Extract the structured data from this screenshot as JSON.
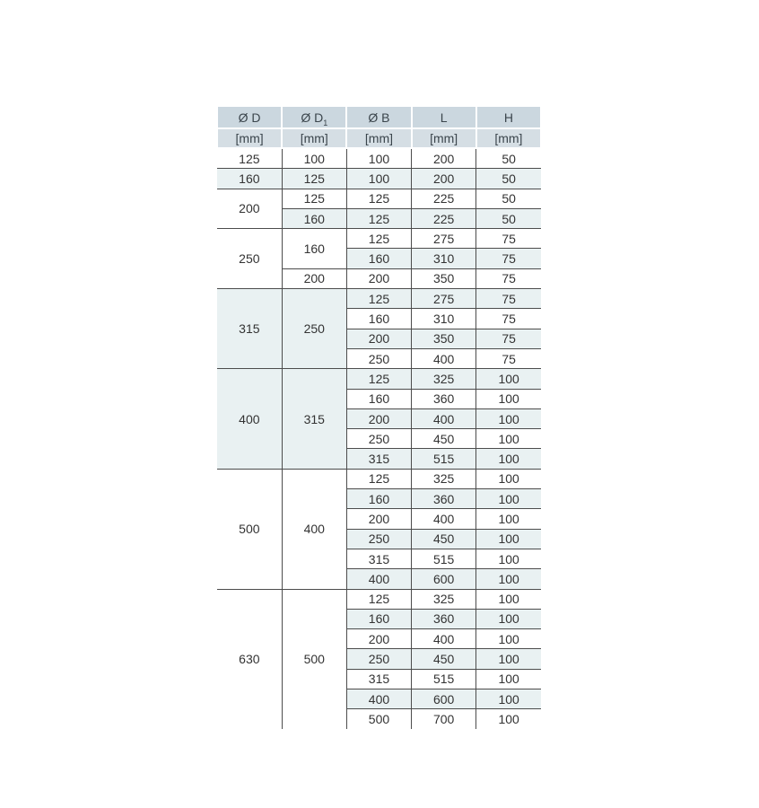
{
  "page": {
    "background": "#ffffff"
  },
  "table": {
    "name": "flange-dimensions-table",
    "colors": {
      "header_bg": "#cbd7df",
      "unit_row_bg": "#d5dee4",
      "stripe_bg": "#e9f1f2",
      "border": "#4c4c4c",
      "text": "#333333",
      "header_text": "#3b454c"
    },
    "header": [
      {
        "text": "Ø D",
        "sub": ""
      },
      {
        "text": "Ø D",
        "sub": "1"
      },
      {
        "text": "Ø B",
        "sub": ""
      },
      {
        "text": "L",
        "sub": ""
      },
      {
        "text": "H",
        "sub": ""
      }
    ],
    "units": [
      "[mm]",
      "[mm]",
      "[mm]",
      "[mm]",
      "[mm]"
    ],
    "groups": [
      {
        "d": "125",
        "subgroups": [
          {
            "d1": "100",
            "rows": [
              [
                "100",
                "200",
                "50"
              ]
            ]
          }
        ]
      },
      {
        "d": "160",
        "subgroups": [
          {
            "d1": "125",
            "rows": [
              [
                "100",
                "200",
                "50"
              ]
            ]
          }
        ]
      },
      {
        "d": "200",
        "subgroups": [
          {
            "d1": "125",
            "rows": [
              [
                "125",
                "225",
                "50"
              ]
            ]
          },
          {
            "d1": "160",
            "rows": [
              [
                "125",
                "225",
                "50"
              ]
            ]
          }
        ]
      },
      {
        "d": "250",
        "subgroups": [
          {
            "d1": "160",
            "rows": [
              [
                "125",
                "275",
                "75"
              ],
              [
                "160",
                "310",
                "75"
              ]
            ]
          },
          {
            "d1": "200",
            "rows": [
              [
                "200",
                "350",
                "75"
              ]
            ]
          }
        ]
      },
      {
        "d": "315",
        "subgroups": [
          {
            "d1": "250",
            "rows": [
              [
                "125",
                "275",
                "75"
              ],
              [
                "160",
                "310",
                "75"
              ],
              [
                "200",
                "350",
                "75"
              ],
              [
                "250",
                "400",
                "75"
              ]
            ]
          }
        ]
      },
      {
        "d": "400",
        "subgroups": [
          {
            "d1": "315",
            "rows": [
              [
                "125",
                "325",
                "100"
              ],
              [
                "160",
                "360",
                "100"
              ],
              [
                "200",
                "400",
                "100"
              ],
              [
                "250",
                "450",
                "100"
              ],
              [
                "315",
                "515",
                "100"
              ]
            ]
          }
        ]
      },
      {
        "d": "500",
        "subgroups": [
          {
            "d1": "400",
            "rows": [
              [
                "125",
                "325",
                "100"
              ],
              [
                "160",
                "360",
                "100"
              ],
              [
                "200",
                "400",
                "100"
              ],
              [
                "250",
                "450",
                "100"
              ],
              [
                "315",
                "515",
                "100"
              ],
              [
                "400",
                "600",
                "100"
              ]
            ]
          }
        ]
      },
      {
        "d": "630",
        "subgroups": [
          {
            "d1": "500",
            "rows": [
              [
                "125",
                "325",
                "100"
              ],
              [
                "160",
                "360",
                "100"
              ],
              [
                "200",
                "400",
                "100"
              ],
              [
                "250",
                "450",
                "100"
              ],
              [
                "315",
                "515",
                "100"
              ],
              [
                "400",
                "600",
                "100"
              ],
              [
                "500",
                "700",
                "100"
              ]
            ]
          }
        ]
      }
    ]
  }
}
